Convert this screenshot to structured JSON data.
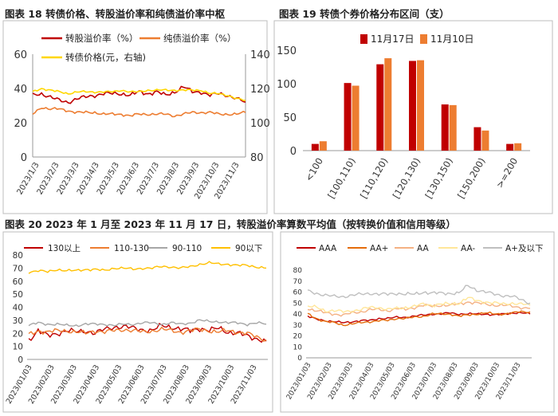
{
  "c1": {
    "title": "图表 18  转债价格、转股溢价率和纯债溢价率中枢",
    "left_ticks": [
      0,
      20,
      40,
      60
    ],
    "right_ticks": [
      80,
      100,
      120,
      140
    ],
    "x_ticks": [
      "2023/1/3",
      "2023/2/3",
      "2023/3/3",
      "2023/4/3",
      "2023/5/3",
      "2023/6/3",
      "2023/7/3",
      "2023/8/3",
      "2023/9/3",
      "2023/10/3",
      "2023/11/3"
    ],
    "legend": [
      "转股溢价率（%）",
      "纯债溢价率（%）",
      "转债价格(元，右轴)"
    ],
    "colors": [
      "#C00000",
      "#ED7D31",
      "#FFD700"
    ]
  },
  "c2": {
    "title": "图表 19  转债个券价格分布区间（支）",
    "y_ticks": [
      0,
      50,
      100,
      150
    ],
    "legend": [
      "11月17日",
      "11月10日"
    ],
    "colors": [
      "#C00000",
      "#ED7D31"
    ],
    "x_ticks": [
      "<100",
      "[100,110)",
      "[110,120)",
      "[120,130)",
      "[130,150)",
      "[150,200)",
      ">=200"
    ]
  },
  "c3": {
    "title": "图表 20  2023 年 1 月至 2023 年 11 月 17 日，转股溢价率算数平均值（按转换价值和信用等级）",
    "y_ticks": [
      0,
      10,
      20,
      30,
      40,
      50,
      60,
      70,
      80
    ],
    "legend": [
      "130以上",
      "110-130",
      "90-110",
      "90以下"
    ],
    "colors": [
      "#C00000",
      "#ED7D31",
      "#A6A6A6",
      "#FFC000"
    ],
    "x_ticks": [
      "2023/01/03",
      "2023/02/03",
      "2023/03/03",
      "2023/04/03",
      "2023/05/03",
      "2023/06/03",
      "2023/07/03",
      "2023/08/03",
      "2023/09/03",
      "2023/10/03",
      "2023/11/03"
    ]
  },
  "c4": {
    "y_ticks": [
      0,
      10,
      20,
      30,
      40,
      50,
      60,
      70,
      80
    ],
    "legend": [
      "AAA",
      "AA+",
      "AA",
      "AA-",
      "A+及以下"
    ],
    "colors": [
      "#C00000",
      "#E46C0A",
      "#F4B183",
      "#FFE699",
      "#BFBFBF"
    ],
    "x_ticks": [
      "2023/01/03",
      "2023/02/03",
      "2023/03/03",
      "2023/04/03",
      "2023/05/03",
      "2023/06/03",
      "2023/07/03",
      "2023/08/03",
      "2023/09/03",
      "2023/10/03",
      "2023/11/03"
    ]
  },
  "chart_data": [
    {
      "type": "line",
      "title": "图表 18  转债价格、转股溢价率和纯债溢价率中枢",
      "x_range": [
        "2023/1/3",
        "2023/11/17"
      ],
      "ylim": [
        0,
        60
      ],
      "ylim_right": [
        80,
        140
      ],
      "series": [
        {
          "name": "转股溢价率（%）",
          "axis": "left",
          "values": [
            36,
            37,
            35,
            33,
            32,
            34,
            35,
            36,
            37,
            37,
            37,
            36,
            38,
            37,
            38,
            36,
            38,
            41,
            38,
            38,
            36,
            37,
            36,
            34,
            32
          ]
        },
        {
          "name": "纯债溢价率（%）",
          "axis": "left",
          "values": [
            25,
            29,
            28,
            28,
            27,
            26,
            26,
            26,
            25,
            25,
            25,
            24,
            25,
            25,
            25,
            25,
            24,
            25,
            26,
            26,
            26,
            25,
            25,
            25,
            26
          ]
        },
        {
          "name": "转债价格(元，右轴)",
          "axis": "right",
          "values": [
            118,
            120,
            119,
            118,
            117,
            118,
            118,
            118,
            118,
            118,
            119,
            118,
            118,
            119,
            119,
            119,
            119,
            119,
            119,
            119,
            117,
            117,
            116,
            114,
            113
          ]
        }
      ]
    },
    {
      "type": "bar",
      "title": "图表 19  转债个券价格分布区间（支）",
      "categories": [
        "<100",
        "[100,110)",
        "[110,120)",
        "[120,130)",
        "[130,150)",
        "[150,200)",
        ">=200"
      ],
      "ylim": [
        0,
        150
      ],
      "series": [
        {
          "name": "11月17日",
          "values": [
            10,
            101,
            129,
            134,
            69,
            35,
            10
          ]
        },
        {
          "name": "11月10日",
          "values": [
            14,
            97,
            138,
            135,
            68,
            30,
            11
          ]
        }
      ]
    },
    {
      "type": "line",
      "title": "图表 20  2023 年 1 月至 2023 年 11 月 17 日，转股溢价率算数平均值（按转换价值和信用等级）",
      "x_range": [
        "2023/01/03",
        "2023/11/17"
      ],
      "ylim": [
        0,
        80
      ],
      "series": [
        {
          "name": "130以上",
          "values": [
            15,
            22,
            18,
            20,
            22,
            21,
            22,
            20,
            23,
            25,
            25,
            24,
            23,
            22,
            26,
            25,
            23,
            22,
            24,
            22,
            24,
            21,
            20,
            18,
            16,
            14
          ]
        },
        {
          "name": "110-130",
          "values": [
            19,
            22,
            21,
            22,
            22,
            21,
            20,
            22,
            21,
            22,
            23,
            22,
            21,
            22,
            23,
            22,
            21,
            22,
            23,
            22,
            21,
            22,
            21,
            20,
            17,
            15
          ]
        },
        {
          "name": "90-110",
          "values": [
            26,
            28,
            27,
            27,
            26,
            26,
            27,
            27,
            27,
            26,
            27,
            27,
            28,
            28,
            27,
            28,
            27,
            28,
            30,
            29,
            29,
            28,
            28,
            27,
            28,
            27
          ]
        },
        {
          "name": "90以下",
          "values": [
            67,
            68,
            67,
            69,
            68,
            68,
            69,
            69,
            68,
            70,
            70,
            69,
            70,
            70,
            71,
            71,
            70,
            71,
            73,
            74,
            73,
            73,
            72,
            72,
            71,
            70
          ]
        }
      ]
    },
    {
      "type": "line",
      "x_range": [
        "2023/01/03",
        "2023/11/17"
      ],
      "ylim": [
        0,
        80
      ],
      "series": [
        {
          "name": "AAA",
          "values": [
            38,
            35,
            34,
            33,
            32,
            33,
            34,
            34,
            36,
            36,
            37,
            37,
            38,
            39,
            40,
            40,
            41,
            40,
            40,
            40,
            40,
            39,
            40,
            41,
            41,
            40
          ]
        },
        {
          "name": "AA+",
          "values": [
            40,
            36,
            33,
            32,
            30,
            31,
            32,
            33,
            34,
            34,
            36,
            36,
            37,
            38,
            40,
            40,
            40,
            38,
            39,
            40,
            41,
            40,
            40,
            41,
            42,
            42
          ]
        },
        {
          "name": "AA",
          "values": [
            45,
            43,
            41,
            40,
            39,
            41,
            42,
            44,
            44,
            43,
            45,
            44,
            46,
            48,
            47,
            48,
            48,
            49,
            51,
            50,
            49,
            48,
            48,
            47,
            46,
            45
          ]
        },
        {
          "name": "AA-",
          "values": [
            47,
            46,
            43,
            43,
            42,
            43,
            44,
            46,
            46,
            44,
            45,
            46,
            47,
            49,
            48,
            49,
            49,
            50,
            55,
            52,
            51,
            50,
            49,
            50,
            49,
            48
          ]
        },
        {
          "name": "A+及以下",
          "values": [
            61,
            59,
            57,
            56,
            56,
            57,
            58,
            59,
            58,
            58,
            59,
            58,
            58,
            60,
            59,
            59,
            59,
            59,
            66,
            62,
            60,
            58,
            57,
            56,
            53,
            50
          ]
        }
      ]
    }
  ]
}
